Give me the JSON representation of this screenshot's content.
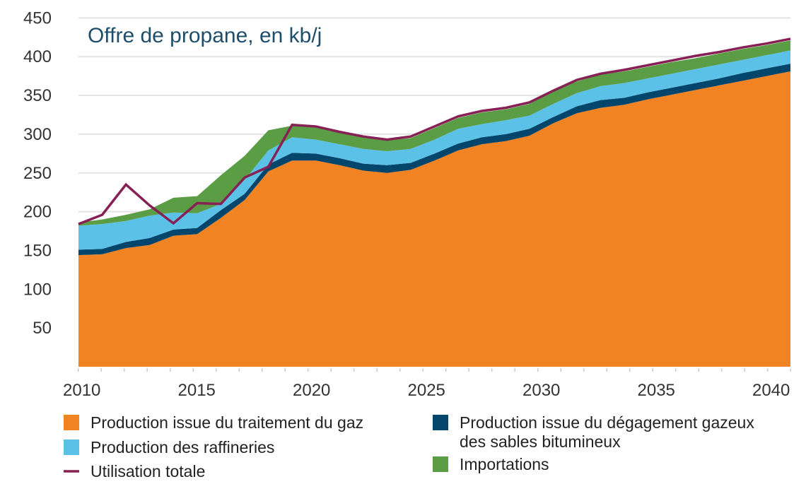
{
  "chart_data": {
    "type": "area",
    "stacked": true,
    "title": "Offre de propane, en kb/j",
    "xlabel": "",
    "ylabel": "",
    "x": [
      2010,
      2011,
      2012,
      2013,
      2014,
      2015,
      2016,
      2017,
      2018,
      2019,
      2020,
      2021,
      2022,
      2023,
      2024,
      2025,
      2026,
      2027,
      2028,
      2029,
      2030,
      2031,
      2032,
      2033,
      2034,
      2035,
      2036,
      2037,
      2038,
      2039,
      2040
    ],
    "xticks": [
      "2010",
      "2015",
      "2020",
      "2025",
      "2030",
      "2035",
      "2040"
    ],
    "yticks": [
      "50",
      "100",
      "150",
      "200",
      "250",
      "300",
      "350",
      "400",
      "450"
    ],
    "ylim": [
      0,
      450
    ],
    "grid": true,
    "legend_position": "bottom",
    "series": [
      {
        "name": "Production issue du traitement du gaz",
        "kind": "area",
        "color": "#f28322",
        "values": [
          144,
          145,
          153,
          157,
          169,
          171,
          192,
          215,
          252,
          266,
          266,
          260,
          253,
          250,
          254,
          266,
          279,
          287,
          291,
          298,
          314,
          327,
          334,
          338,
          345,
          351,
          357,
          363,
          369,
          375,
          381
        ]
      },
      {
        "name": "Production issue du dégagement gazeux des sables bitumineux",
        "kind": "area",
        "color": "#04466b",
        "values": [
          7,
          7,
          8,
          9,
          8,
          8,
          10,
          8,
          9,
          10,
          9,
          9,
          9,
          10,
          9,
          9,
          9,
          9,
          9,
          9,
          8,
          9,
          10,
          9,
          9,
          9,
          9,
          9,
          10,
          10,
          10
        ]
      },
      {
        "name": "Production des raffineries",
        "kind": "area",
        "color": "#5bc1e6",
        "values": [
          31,
          32,
          27,
          29,
          22,
          19,
          8,
          18,
          18,
          20,
          18,
          18,
          19,
          18,
          18,
          18,
          19,
          17,
          18,
          17,
          17,
          17,
          18,
          19,
          18,
          18,
          18,
          18,
          17,
          17,
          17
        ]
      },
      {
        "name": "Importations",
        "kind": "area",
        "color": "#5b9d45",
        "values": [
          4,
          6,
          8,
          8,
          19,
          22,
          37,
          31,
          26,
          15,
          16,
          15,
          16,
          14,
          14,
          15,
          14,
          15,
          14,
          15,
          17,
          15,
          15,
          15,
          15,
          15,
          14,
          14,
          14,
          13,
          13
        ]
      },
      {
        "name": "Utilisation totale",
        "kind": "line",
        "color": "#862055",
        "values": [
          184,
          196,
          235,
          208,
          185,
          211,
          210,
          244,
          258,
          312,
          310,
          303,
          297,
          293,
          297,
          310,
          323,
          330,
          334,
          341,
          356,
          370,
          378,
          383,
          389,
          395,
          401,
          406,
          412,
          417,
          423
        ]
      }
    ],
    "legend": [
      {
        "label": "Production issue du traitement du gaz",
        "color": "#f28322",
        "shape": "square"
      },
      {
        "label": "Production des raffineries",
        "color": "#5bc1e6",
        "shape": "square"
      },
      {
        "label": "Utilisation totale",
        "color": "#862055",
        "shape": "line"
      },
      {
        "label_lines": [
          "Production issue du dégagement gazeux",
          "des sables bitumineux"
        ],
        "color": "#04466b",
        "shape": "square"
      },
      {
        "label": "Importations",
        "color": "#5b9d45",
        "shape": "square"
      }
    ]
  }
}
